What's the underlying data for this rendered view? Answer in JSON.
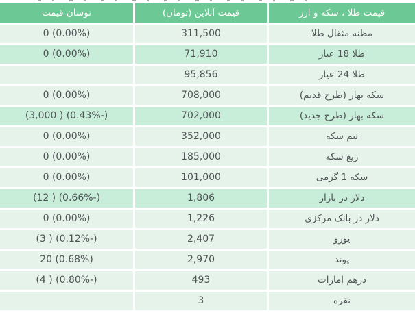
{
  "colors": {
    "header_bg": "#6cc894",
    "header_text": "#ffffff",
    "row_bg": "#e5f3ea",
    "row_highlight_bg": "#c8eeda",
    "cell_text": "#4f5355",
    "gap": "#ffffff"
  },
  "table": {
    "headers": {
      "name": "قیمت طلا ، سکه و ارز",
      "price": "قیمت آنلاین (تومان)",
      "change": "نوسان قیمت"
    },
    "rows": [
      {
        "name": "مظنه مثقال طلا",
        "price": "311,500",
        "change": "0 (0.00%)",
        "highlight": false
      },
      {
        "name": "طلا 18 عیار",
        "price": "71,910",
        "change": "0 (0.00%)",
        "highlight": true
      },
      {
        "name": "طلا 24 عیار",
        "price": "95,856",
        "change": "",
        "highlight": false
      },
      {
        "name": "سکه بهار (طرح قدیم)",
        "price": "708,000",
        "change": "0 (0.00%)",
        "highlight": false
      },
      {
        "name": "سکه بهار (طرح جدید)",
        "price": "702,000",
        "change": "(3,000 ) (0.43%-)",
        "highlight": true
      },
      {
        "name": "نیم سکه",
        "price": "352,000",
        "change": "0 (0.00%)",
        "highlight": false
      },
      {
        "name": "ربع سکه",
        "price": "185,000",
        "change": "0 (0.00%)",
        "highlight": false
      },
      {
        "name": "سکه 1 گرمی",
        "price": "101,000",
        "change": "0 (0.00%)",
        "highlight": false
      },
      {
        "name": "دلار در بازار",
        "price": "1,806",
        "change": "(12 ) (0.66%-)",
        "highlight": true
      },
      {
        "name": "دلار در بانک مرکزی",
        "price": "1,226",
        "change": "0 (0.00%)",
        "highlight": false
      },
      {
        "name": "یورو",
        "price": "2,407",
        "change": "(3 ) (0.12%-)",
        "highlight": false
      },
      {
        "name": "پوند",
        "price": "2,970",
        "change": "20 (0.68%)",
        "highlight": false
      },
      {
        "name": "درهم امارات",
        "price": "493",
        "change": "(4 ) (0.80%-)",
        "highlight": false
      },
      {
        "name": "نقره",
        "price": "3",
        "change": "",
        "highlight": false
      }
    ]
  }
}
